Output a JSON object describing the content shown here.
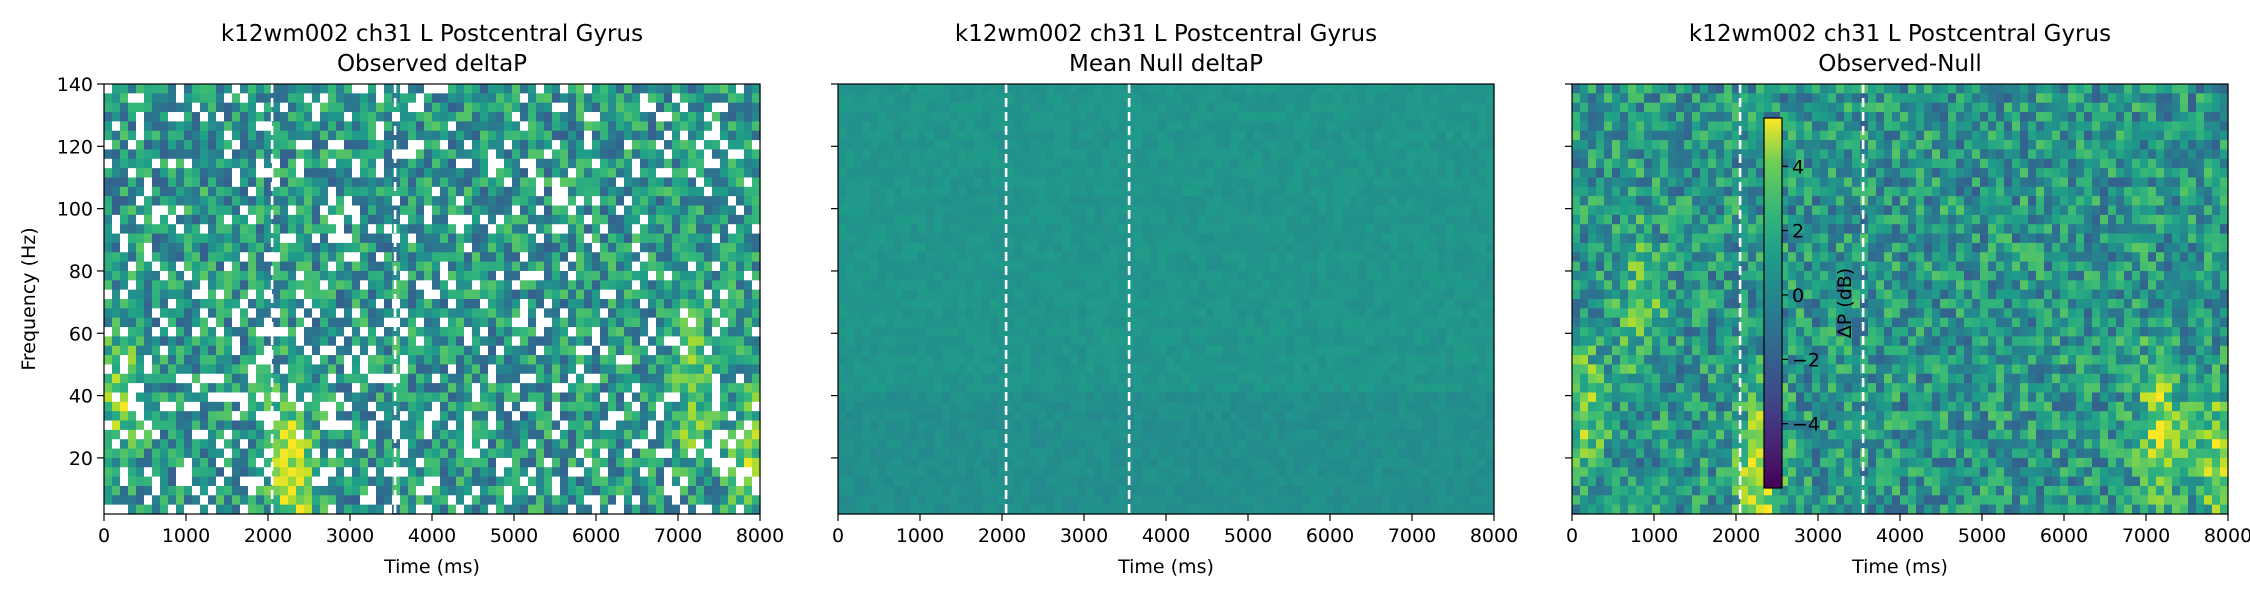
{
  "chart_data": [
    {
      "type": "heatmap",
      "title_line1": "k12wm002 ch31 L Postcentral Gyrus",
      "title_line2": "Observed deltaP",
      "xlabel": "Time (ms)",
      "ylabel": "Frequency (Hz)",
      "xlim": [
        0,
        8000
      ],
      "ylim": [
        2,
        140
      ],
      "xticks": [
        "0",
        "1000",
        "2000",
        "3000",
        "4000",
        "5000",
        "6000",
        "7000",
        "8000"
      ],
      "yticks": [
        "20",
        "40",
        "60",
        "80",
        "100",
        "120",
        "140"
      ],
      "event_lines_ms": [
        2050,
        3550
      ],
      "masked_nonsignificant": true,
      "hotspots": [
        {
          "time_ms": 2300,
          "freq_hz": 15,
          "value_db": 5
        },
        {
          "time_ms": 7200,
          "freq_hz": 40,
          "value_db": 3
        },
        {
          "time_ms": 7900,
          "freq_hz": 20,
          "value_db": 3
        },
        {
          "time_ms": 200,
          "freq_hz": 40,
          "value_db": 3
        }
      ]
    },
    {
      "type": "heatmap",
      "title_line1": "k12wm002 ch31 L Postcentral Gyrus",
      "title_line2": "Mean Null deltaP",
      "xlabel": "Time (ms)",
      "xlim": [
        0,
        8000
      ],
      "ylim": [
        2,
        140
      ],
      "xticks": [
        "0",
        "1000",
        "2000",
        "3000",
        "4000",
        "5000",
        "6000",
        "7000",
        "8000"
      ],
      "event_lines_ms": [
        2050,
        3550
      ],
      "uniform_value_db": 0
    },
    {
      "type": "heatmap",
      "title_line1": "k12wm002 ch31 L Postcentral Gyrus",
      "title_line2": "Observed-Null",
      "xlabel": "Time (ms)",
      "xlim": [
        0,
        8000
      ],
      "ylim": [
        2,
        140
      ],
      "xticks": [
        "0",
        "1000",
        "2000",
        "3000",
        "4000",
        "5000",
        "6000",
        "7000",
        "8000"
      ],
      "event_lines_ms": [
        2050,
        3550
      ],
      "hotspots": [
        {
          "time_ms": 2300,
          "freq_hz": 15,
          "value_db": 5.5
        },
        {
          "time_ms": 7150,
          "freq_hz": 30,
          "value_db": 4
        },
        {
          "time_ms": 7850,
          "freq_hz": 20,
          "value_db": 3.5
        },
        {
          "time_ms": 150,
          "freq_hz": 35,
          "value_db": 3
        },
        {
          "time_ms": 850,
          "freq_hz": 70,
          "value_db": 2.5
        }
      ],
      "colorbar": {
        "label": "ΔP (dB)",
        "range": [
          -6,
          5.5
        ],
        "ticks": [
          "4",
          "2",
          "0",
          "−2",
          "−4"
        ],
        "tick_values": [
          4,
          2,
          0,
          -2,
          -4
        ],
        "colormap": "viridis"
      }
    }
  ]
}
